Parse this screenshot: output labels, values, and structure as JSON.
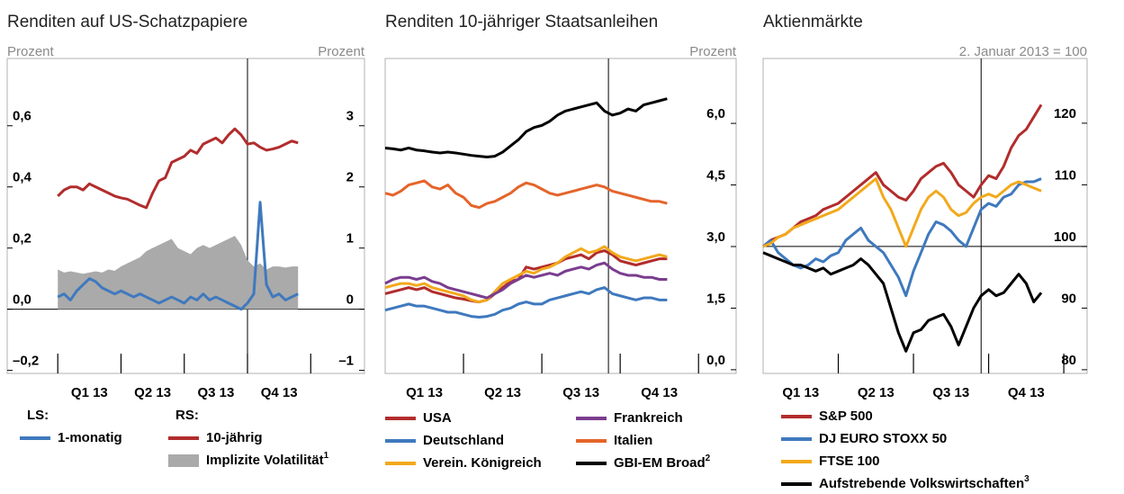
{
  "chart_data": [
    {
      "type": "line",
      "title": "Renditen auf US-Schatzpapiere",
      "left_unit": "Prozent",
      "right_unit": "Prozent",
      "xlim": [
        -0.8,
        4.85
      ],
      "xticks": [
        0,
        1,
        2,
        3,
        4
      ],
      "xlabels": [
        {
          "value": 0.5,
          "label": "Q1 13"
        },
        {
          "value": 1.5,
          "label": "Q2 13"
        },
        {
          "value": 2.5,
          "label": "Q3 13"
        },
        {
          "value": 3.5,
          "label": "Q4 13"
        }
      ],
      "vline": 3,
      "hline": 0,
      "ylim": [
        -0.21,
        0.82
      ],
      "yticks": [
        {
          "value": 0.6,
          "label": "0,6"
        },
        {
          "value": 0.4,
          "label": "0,4"
        },
        {
          "value": 0.2,
          "label": "0,2"
        },
        {
          "value": 0,
          "label": "0,0"
        },
        {
          "value": -0.2,
          "label": "–0,2"
        }
      ],
      "y2lim": [
        -1.05,
        4.1
      ],
      "y2ticks": [
        3,
        2,
        1,
        0,
        {
          "value": -1,
          "label": "–1"
        }
      ],
      "legend_titles": [
        "LS:",
        "RS:"
      ],
      "x": [
        0,
        0.1,
        0.2,
        0.3,
        0.4,
        0.5,
        0.6,
        0.7,
        0.8,
        0.9,
        1.0,
        1.1,
        1.2,
        1.3,
        1.4,
        1.5,
        1.6,
        1.7,
        1.8,
        1.9,
        2.0,
        2.1,
        2.2,
        2.3,
        2.4,
        2.5,
        2.6,
        2.7,
        2.8,
        2.9,
        3.0,
        3.1,
        3.2,
        3.3,
        3.4,
        3.5,
        3.6,
        3.7,
        3.8
      ],
      "series": [
        {
          "name": "Implizite Volatilität",
          "note": "1",
          "color": "#aaaaaa",
          "style": "area",
          "axis": "y2",
          "values": [
            0.65,
            0.6,
            0.62,
            0.6,
            0.58,
            0.6,
            0.62,
            0.6,
            0.65,
            0.63,
            0.7,
            0.75,
            0.8,
            0.85,
            0.95,
            1.0,
            1.05,
            1.1,
            1.15,
            1.0,
            0.95,
            0.9,
            1.0,
            1.05,
            1.0,
            1.05,
            1.1,
            1.15,
            1.2,
            1.05,
            0.8,
            0.7,
            0.75,
            0.65,
            0.7,
            0.7,
            0.68,
            0.7,
            0.7
          ]
        },
        {
          "name": "10-jährig",
          "color": "#b22c2c",
          "axis": "y2",
          "values": [
            1.85,
            1.95,
            2.0,
            2.0,
            1.95,
            2.05,
            2.0,
            1.95,
            1.9,
            1.85,
            1.82,
            1.8,
            1.75,
            1.7,
            1.66,
            1.9,
            2.1,
            2.15,
            2.4,
            2.45,
            2.5,
            2.6,
            2.55,
            2.7,
            2.75,
            2.8,
            2.72,
            2.85,
            2.95,
            2.85,
            2.7,
            2.72,
            2.65,
            2.6,
            2.62,
            2.65,
            2.7,
            2.75,
            2.72
          ]
        },
        {
          "name": "1-monatig",
          "color": "#3f79be",
          "axis": "y",
          "values": [
            0.04,
            0.05,
            0.03,
            0.06,
            0.08,
            0.1,
            0.09,
            0.07,
            0.06,
            0.05,
            0.06,
            0.05,
            0.04,
            0.05,
            0.04,
            0.03,
            0.02,
            0.03,
            0.04,
            0.03,
            0.02,
            0.04,
            0.03,
            0.05,
            0.03,
            0.04,
            0.03,
            0.02,
            0.01,
            0.0,
            0.02,
            0.05,
            0.35,
            0.08,
            0.04,
            0.05,
            0.03,
            0.04,
            0.05
          ]
        }
      ]
    },
    {
      "type": "line",
      "title": "Renditen 10-jähriger Staatsanleihen",
      "right_unit": "Prozent",
      "yaxis_side": "right",
      "xlim": [
        0,
        4.48
      ],
      "xticks": [
        1,
        2,
        3,
        4
      ],
      "xlabels": [
        {
          "value": 0.5,
          "label": "Q1 13"
        },
        {
          "value": 1.5,
          "label": "Q2 13"
        },
        {
          "value": 2.5,
          "label": "Q3 13"
        },
        {
          "value": 3.5,
          "label": "Q4 13"
        }
      ],
      "vline": 2.85,
      "ylim": [
        -0.09,
        7.58
      ],
      "yticks": [
        {
          "value": 6,
          "label": "6,0"
        },
        {
          "value": 4.5,
          "label": "4,5"
        },
        {
          "value": 3,
          "label": "3,0"
        },
        {
          "value": 1.5,
          "label": "1,5"
        },
        {
          "value": 0,
          "label": "0,0"
        }
      ],
      "x": [
        0,
        0.1,
        0.2,
        0.3,
        0.4,
        0.5,
        0.6,
        0.7,
        0.8,
        0.9,
        1.0,
        1.1,
        1.2,
        1.3,
        1.4,
        1.5,
        1.6,
        1.7,
        1.8,
        1.9,
        2.0,
        2.1,
        2.2,
        2.3,
        2.4,
        2.5,
        2.6,
        2.7,
        2.8,
        2.9,
        3.0,
        3.1,
        3.2,
        3.3,
        3.4,
        3.5,
        3.6
      ],
      "series": [
        {
          "name": "USA",
          "color": "#b22c2c",
          "values": [
            1.85,
            1.9,
            1.95,
            2.0,
            1.95,
            2.0,
            1.9,
            1.85,
            1.8,
            1.75,
            1.72,
            1.68,
            1.65,
            1.7,
            1.85,
            2.0,
            2.15,
            2.2,
            2.5,
            2.45,
            2.5,
            2.55,
            2.6,
            2.7,
            2.75,
            2.8,
            2.7,
            2.85,
            2.9,
            2.8,
            2.65,
            2.6,
            2.55,
            2.6,
            2.65,
            2.7,
            2.7
          ]
        },
        {
          "name": "Deutschland",
          "color": "#3f79be",
          "values": [
            1.45,
            1.5,
            1.55,
            1.6,
            1.55,
            1.55,
            1.5,
            1.45,
            1.4,
            1.4,
            1.35,
            1.3,
            1.28,
            1.3,
            1.35,
            1.45,
            1.5,
            1.6,
            1.65,
            1.6,
            1.6,
            1.7,
            1.75,
            1.8,
            1.85,
            1.9,
            1.85,
            1.95,
            2.0,
            1.85,
            1.8,
            1.75,
            1.7,
            1.75,
            1.75,
            1.7,
            1.7
          ]
        },
        {
          "name": "Verein. Königreich",
          "color": "#f2a91c",
          "values": [
            2.0,
            2.05,
            2.1,
            2.1,
            2.05,
            2.1,
            2.0,
            1.95,
            1.9,
            1.85,
            1.8,
            1.7,
            1.65,
            1.7,
            1.9,
            2.1,
            2.2,
            2.3,
            2.4,
            2.35,
            2.45,
            2.5,
            2.6,
            2.75,
            2.85,
            2.95,
            2.85,
            2.9,
            3.0,
            2.85,
            2.75,
            2.7,
            2.65,
            2.7,
            2.75,
            2.8,
            2.75
          ]
        },
        {
          "name": "Frankreich",
          "color": "#7a3d8f",
          "values": [
            2.1,
            2.2,
            2.25,
            2.25,
            2.2,
            2.25,
            2.15,
            2.1,
            2.0,
            1.95,
            1.9,
            1.85,
            1.8,
            1.75,
            1.85,
            1.95,
            2.1,
            2.2,
            2.3,
            2.25,
            2.3,
            2.35,
            2.3,
            2.4,
            2.45,
            2.5,
            2.45,
            2.55,
            2.6,
            2.45,
            2.35,
            2.3,
            2.3,
            2.25,
            2.25,
            2.2,
            2.2
          ]
        },
        {
          "name": "Italien",
          "color": "#e5642a",
          "values": [
            4.3,
            4.25,
            4.35,
            4.5,
            4.55,
            4.6,
            4.45,
            4.4,
            4.5,
            4.3,
            4.2,
            4.0,
            3.95,
            4.05,
            4.1,
            4.2,
            4.3,
            4.45,
            4.55,
            4.5,
            4.4,
            4.3,
            4.25,
            4.3,
            4.35,
            4.4,
            4.45,
            4.5,
            4.45,
            4.35,
            4.3,
            4.25,
            4.2,
            4.15,
            4.1,
            4.1,
            4.05
          ]
        },
        {
          "name": "GBI-EM Broad",
          "note": "2",
          "color": "#000000",
          "values": [
            5.4,
            5.38,
            5.35,
            5.4,
            5.35,
            5.33,
            5.3,
            5.28,
            5.3,
            5.28,
            5.25,
            5.22,
            5.2,
            5.18,
            5.2,
            5.3,
            5.45,
            5.6,
            5.8,
            5.9,
            5.95,
            6.05,
            6.2,
            6.3,
            6.35,
            6.4,
            6.45,
            6.5,
            6.3,
            6.2,
            6.25,
            6.35,
            6.3,
            6.45,
            6.5,
            6.55,
            6.6
          ]
        }
      ]
    },
    {
      "type": "line",
      "title": "Aktienmärkte",
      "right_unit": "2. Januar 2013 = 100",
      "yaxis_side": "right",
      "xlim": [
        0,
        4.31
      ],
      "xticks": [
        1,
        2,
        3,
        4
      ],
      "xlabels": [
        {
          "value": 0.5,
          "label": "Q1 13"
        },
        {
          "value": 1.5,
          "label": "Q2 13"
        },
        {
          "value": 2.5,
          "label": "Q3 13"
        },
        {
          "value": 3.5,
          "label": "Q4 13"
        }
      ],
      "vline": 2.9,
      "hline": 100,
      "ylim": [
        79.4,
        130.5
      ],
      "yticks": [
        120,
        110,
        100,
        90,
        80
      ],
      "x": [
        0,
        0.1,
        0.2,
        0.3,
        0.4,
        0.5,
        0.6,
        0.7,
        0.8,
        0.9,
        1.0,
        1.1,
        1.2,
        1.3,
        1.4,
        1.5,
        1.6,
        1.7,
        1.8,
        1.9,
        2.0,
        2.1,
        2.2,
        2.3,
        2.4,
        2.5,
        2.6,
        2.7,
        2.8,
        2.9,
        3.0,
        3.1,
        3.2,
        3.3,
        3.4,
        3.5,
        3.6,
        3.7
      ],
      "series": [
        {
          "name": "S&P 500",
          "color": "#b22c2c",
          "values": [
            100,
            101,
            101.5,
            102,
            103,
            104,
            104.5,
            105,
            106,
            106.5,
            107,
            108,
            109,
            110,
            111,
            112,
            110,
            109,
            108,
            107.5,
            109,
            111,
            112,
            113,
            113.5,
            112,
            110,
            109,
            108,
            110,
            111.5,
            111,
            113,
            116,
            118,
            119,
            121,
            123
          ]
        },
        {
          "name": "DJ EURO STOXX 50",
          "color": "#3f79be",
          "values": [
            100,
            101,
            99,
            98,
            97,
            96.5,
            97,
            98,
            97.5,
            98.5,
            99,
            101,
            102,
            103,
            101,
            100,
            99,
            97,
            95,
            92,
            96,
            99,
            102,
            104,
            103.5,
            102.5,
            101,
            100,
            103,
            106,
            107,
            106.5,
            108,
            108.5,
            110,
            110.5,
            110.5,
            111
          ]
        },
        {
          "name": "FTSE 100",
          "color": "#f2a91c",
          "values": [
            100,
            100.5,
            101.5,
            102,
            103,
            103.5,
            104,
            104.5,
            105,
            105.5,
            106,
            107,
            108,
            109,
            110,
            111,
            108,
            106,
            103,
            100,
            103,
            106,
            108,
            109,
            108,
            106,
            105,
            105.5,
            107,
            108,
            108.5,
            108,
            109,
            110,
            110.5,
            110,
            109.5,
            109
          ]
        },
        {
          "name": "Aufstrebende Volkswirtschaften",
          "note": "3",
          "color": "#000000",
          "values": [
            99,
            98.5,
            98,
            97.5,
            97,
            97,
            96.5,
            96,
            96.5,
            95.5,
            96,
            96.5,
            97,
            98,
            97,
            95.5,
            94,
            90,
            86,
            83,
            86,
            86.5,
            88,
            88.5,
            89,
            87,
            84,
            87,
            90,
            92,
            93,
            92,
            92.5,
            94,
            95.5,
            94,
            91,
            92.5
          ]
        }
      ]
    }
  ]
}
